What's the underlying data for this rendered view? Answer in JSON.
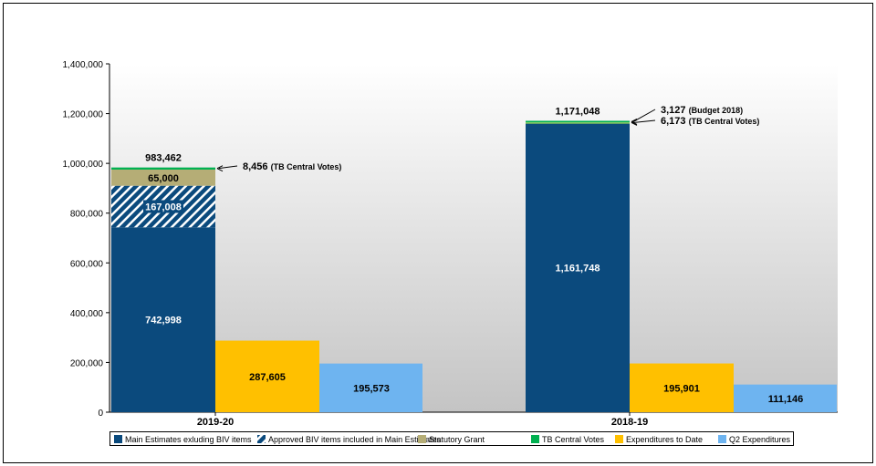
{
  "chart_data": {
    "type": "bar",
    "stacked_first_bar": true,
    "categories": [
      "2019-20",
      "2018-19"
    ],
    "ylim": [
      0,
      1400000
    ],
    "yticks": [
      0,
      200000,
      400000,
      600000,
      800000,
      1000000,
      1200000,
      1400000
    ],
    "ytick_labels": [
      "0",
      "200,000",
      "400,000",
      "600,000",
      "800,000",
      "1,000,000",
      "1,200,000",
      "1,400,000"
    ],
    "grid": false,
    "legend_placement": "bottom",
    "series": [
      {
        "name": "Main Estimates exluding BIV items",
        "color": "#0b4a7d",
        "values": [
          742998,
          1161748
        ],
        "labels": [
          "742,998",
          "1,161,748"
        ]
      },
      {
        "name": "Approved BIV items included in Main Estimates",
        "color": "#0b4a7d",
        "pattern": "hatched",
        "values": [
          167008,
          0
        ],
        "labels": [
          "167,008",
          ""
        ]
      },
      {
        "name": "Statutory Grant",
        "color": "#b5ad76",
        "values": [
          65000,
          0
        ],
        "labels": [
          "65,000",
          ""
        ]
      },
      {
        "name": "Budget 2018",
        "color": "#8fcf5a",
        "legend": false,
        "values": [
          0,
          3127
        ]
      },
      {
        "name": "TB Central Votes",
        "color": "#00b050",
        "values": [
          8456,
          6173
        ]
      },
      {
        "name": "Expenditures to Date",
        "color": "#ffc000",
        "values": [
          287605,
          195901
        ],
        "labels": [
          "287,605",
          "195,901"
        ]
      },
      {
        "name": "Q2 Expenditures",
        "color": "#6eb4f0",
        "values": [
          195573,
          111146
        ],
        "labels": [
          "195,573",
          "111,146"
        ]
      }
    ],
    "totals": [
      "983,462",
      "1,171,048"
    ],
    "annotations": [
      {
        "value": "8,456",
        "label": "(TB Central Votes)"
      },
      {
        "value": "3,127",
        "label": "(Budget 2018)"
      },
      {
        "value": "6,173",
        "label": "(TB Central Votes)"
      }
    ]
  }
}
